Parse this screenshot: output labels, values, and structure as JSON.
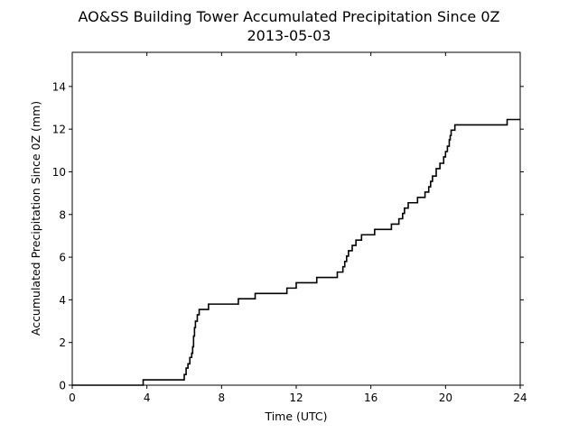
{
  "chart_data": {
    "type": "line",
    "title": "AO&SS Building Tower Accumulated Precipitation Since 0Z",
    "subtitle": "2013-05-03",
    "xlabel": "Time (UTC)",
    "ylabel": "Accumulated Precipitation Since 0Z (mm)",
    "xlim": [
      0,
      24
    ],
    "ylim": [
      0,
      15.6
    ],
    "xticks": [
      "0",
      "4",
      "8",
      "12",
      "16",
      "20",
      "24"
    ],
    "yticks": [
      "0",
      "2",
      "4",
      "6",
      "8",
      "10",
      "12",
      "14"
    ],
    "grid": false,
    "legend": "none",
    "line_color": "#000000",
    "series": [
      {
        "step": true,
        "x": [
          0,
          3.8,
          6.0,
          6.1,
          6.2,
          6.3,
          6.4,
          6.45,
          6.5,
          6.55,
          6.6,
          6.7,
          6.8,
          7.0,
          7.3,
          8.9,
          9.8,
          11.5,
          12.0,
          13.1,
          14.2,
          14.5,
          14.6,
          14.7,
          14.8,
          15.0,
          15.2,
          15.5,
          16.2,
          17.1,
          17.5,
          17.7,
          17.8,
          18.0,
          18.5,
          18.9,
          19.1,
          19.2,
          19.3,
          19.5,
          19.7,
          19.9,
          20.0,
          20.1,
          20.2,
          20.25,
          20.3,
          20.5,
          23.3,
          24.0
        ],
        "y": [
          0.0,
          0.25,
          0.5,
          0.8,
          1.0,
          1.3,
          1.5,
          1.8,
          2.3,
          2.7,
          3.0,
          3.3,
          3.55,
          3.55,
          3.8,
          4.05,
          4.3,
          4.55,
          4.8,
          5.05,
          5.3,
          5.55,
          5.8,
          6.05,
          6.3,
          6.55,
          6.8,
          7.05,
          7.3,
          7.55,
          7.8,
          8.05,
          8.3,
          8.55,
          8.8,
          9.05,
          9.3,
          9.55,
          9.8,
          10.15,
          10.4,
          10.7,
          10.95,
          11.2,
          11.5,
          11.7,
          11.95,
          12.2,
          12.45,
          12.45
        ]
      }
    ]
  }
}
